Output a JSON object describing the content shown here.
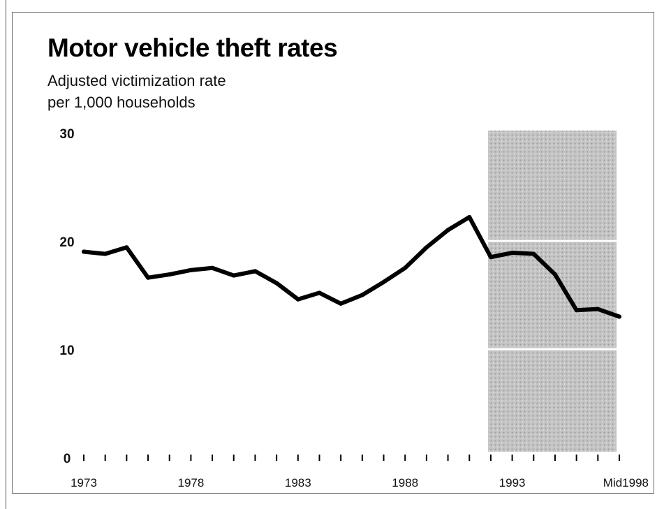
{
  "chart_data": {
    "type": "line",
    "title": "Motor vehicle theft rates",
    "subtitle_lines": [
      "Adjusted victimization rate",
      "per 1,000 households"
    ],
    "xlabel": "",
    "ylabel": "",
    "x": [
      1973,
      1974,
      1975,
      1976,
      1977,
      1978,
      1979,
      1980,
      1981,
      1982,
      1983,
      1984,
      1985,
      1986,
      1987,
      1988,
      1989,
      1990,
      1991,
      1992,
      1993,
      1994,
      1995,
      1996,
      1997,
      1998
    ],
    "series": [
      {
        "name": "",
        "color": "#000000",
        "values": [
          19.0,
          18.8,
          19.4,
          16.6,
          16.9,
          17.3,
          17.5,
          16.8,
          17.2,
          16.1,
          14.6,
          15.2,
          14.2,
          15.0,
          16.2,
          17.5,
          19.4,
          21.0,
          22.2,
          18.5,
          18.9,
          18.8,
          16.9,
          13.6,
          13.7,
          13.0
        ]
      }
    ],
    "ylim": [
      0,
      30
    ],
    "xlim": [
      1973,
      1998
    ],
    "y_ticks": [
      {
        "value": 0,
        "label": "0"
      },
      {
        "value": 10,
        "label": "10"
      },
      {
        "value": 20,
        "label": "20"
      },
      {
        "value": 30,
        "label": "30"
      }
    ],
    "x_tick_labels": [
      {
        "value": 1973,
        "label": "1973"
      },
      {
        "value": 1978,
        "label": "1978"
      },
      {
        "value": 1983,
        "label": "1983"
      },
      {
        "value": 1988,
        "label": "1988"
      },
      {
        "value": 1993,
        "label": "1993"
      },
      {
        "value": 1998,
        "label": "Mid1998"
      }
    ],
    "shaded_region": {
      "x_from": 1992,
      "x_to": 1998,
      "color": "#b8b8b8"
    },
    "grid": false,
    "legend": "none"
  }
}
